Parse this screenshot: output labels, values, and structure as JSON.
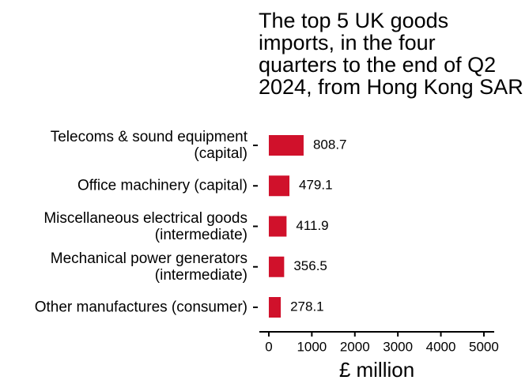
{
  "chart_data": {
    "type": "bar",
    "orientation": "horizontal",
    "title": "The top 5 UK goods\nimports, in the four\nquarters to the end of Q2\n2024, from Hong Kong SAR",
    "categories": [
      "Telecoms & sound equipment\n(capital)",
      "Office machinery (capital)",
      "Miscellaneous electrical goods\n(intermediate)",
      "Mechanical power generators\n(intermediate)",
      "Other manufactures (consumer)"
    ],
    "values": [
      808.7,
      479.1,
      411.9,
      356.5,
      278.1
    ],
    "color": "#d0112b",
    "xlabel": "£ million",
    "xlim": [
      -220,
      5240
    ],
    "xticks": [
      0,
      1000,
      2000,
      3000,
      4000,
      5000
    ]
  }
}
